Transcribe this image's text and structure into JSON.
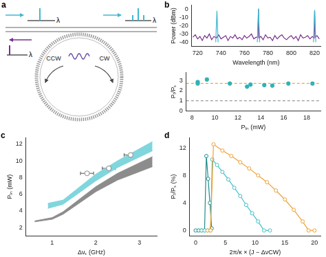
{
  "diagram": {
    "panel": "a",
    "wavelength_label": "λ",
    "ccw_label": "CCW",
    "cw_label": "CW"
  },
  "chart_data": [
    {
      "panel": "b",
      "type": "line",
      "xlabel": "Wavelength (nm)",
      "ylabel": "Power (dBm)",
      "xlim": [
        715,
        825
      ],
      "xticks": [
        720,
        740,
        760,
        780,
        800,
        820
      ],
      "ylim": [
        -45,
        5
      ],
      "yticks": [
        -40,
        -30,
        -20,
        -10,
        0
      ],
      "grid": false,
      "series": [
        {
          "color": "#7a2f8f",
          "marker": "none",
          "line_style": "solid",
          "x": [
            716,
            718,
            720,
            722,
            724,
            726,
            728,
            730,
            732,
            734,
            736,
            738,
            740,
            742,
            744,
            746,
            748,
            750,
            752,
            754,
            756,
            758,
            760,
            762,
            764,
            766,
            768,
            770,
            771.5,
            772,
            772.5,
            774,
            776,
            778,
            780,
            782,
            784,
            786,
            788,
            790,
            792,
            794,
            796,
            798,
            800,
            802,
            804,
            806,
            808,
            810,
            812,
            814,
            816,
            818,
            819.5,
            820,
            820.5,
            822,
            824
          ],
          "values": [
            -34,
            -31,
            -36,
            -33,
            -38,
            -32,
            -35,
            -30,
            -37,
            -33,
            -35,
            -31,
            -36,
            -34,
            -32,
            -38,
            -33,
            -35,
            -31,
            -36,
            -34,
            -37,
            -32,
            -35,
            -33,
            -30,
            -36,
            -34,
            -34,
            0,
            -35,
            -33,
            -37,
            -31,
            -35,
            -34,
            -38,
            -32,
            -36,
            -33,
            -31,
            -35,
            -37,
            -34,
            -32,
            -36,
            -33,
            -38,
            -31,
            -35,
            -34,
            -32,
            -36,
            -33,
            -35,
            -2,
            -34,
            -32,
            -36
          ]
        },
        {
          "color": "#3fb8d0",
          "marker": "none",
          "line_style": "solid",
          "x": [
            735.5,
            736.5,
            737.5,
            750,
            771,
            772,
            773,
            790,
            819,
            820,
            821
          ],
          "values": [
            -40,
            -2,
            -40,
            null,
            -40,
            1,
            -40,
            null,
            -40,
            -1,
            -40
          ]
        }
      ]
    },
    {
      "type": "scatter",
      "xlabel": "Pᵢₙ (mW)",
      "ylabel": "Pᵣ/Pₛ",
      "xlim": [
        7.5,
        19.2
      ],
      "xticks": [
        8,
        10,
        12,
        14,
        16,
        18
      ],
      "ylim": [
        0,
        3.8
      ],
      "yticks": [
        0,
        1,
        2,
        3
      ],
      "grid": false,
      "series": [
        {
          "color": "#2fb3b3",
          "marker": "circle",
          "x": [
            8.5,
            8.5,
            9.3,
            11.3,
            12.8,
            13.1,
            14.3,
            15,
            16.4,
            18.5
          ],
          "values": [
            2.85,
            2.7,
            3.1,
            2.7,
            2.4,
            2.6,
            2.55,
            2.5,
            2.7,
            2.7
          ]
        }
      ],
      "reference_lines": [
        {
          "value": 2.72,
          "color": "#f0a830",
          "line_style": "dashed"
        },
        {
          "value": 1,
          "color": "#999999",
          "line_style": "dashed"
        }
      ]
    },
    {
      "panel": "c",
      "type": "line",
      "xlabel": "Δνₛ (GHz)",
      "ylabel": "Pᵢₙ (mW)",
      "xlim": [
        0.4,
        3.4
      ],
      "xticks": [
        1,
        2,
        3
      ],
      "ylim": [
        1,
        12.8
      ],
      "yticks": [
        2,
        4,
        6,
        8,
        10,
        12
      ],
      "grid": false,
      "bands": [
        {
          "color": "#7fd6dc",
          "x": [
            0.9,
            1.25,
            2,
            2.5,
            3.3
          ],
          "lower": [
            4.3,
            4.8,
            7.6,
            9.2,
            11.2
          ],
          "upper": [
            4.9,
            5.3,
            8.4,
            10,
            12.3
          ]
        },
        {
          "color": "#8c8c8c",
          "x": [
            0.6,
            1,
            1.25,
            2,
            2.5,
            3.3
          ],
          "lower": [
            2.7,
            3.0,
            3.6,
            6.3,
            7.7,
            9.3
          ],
          "upper": [
            2.8,
            3.2,
            3.9,
            6.9,
            8.5,
            10.5
          ]
        }
      ],
      "points": {
        "x": [
          1.8,
          2.3,
          2.8
        ],
        "values": [
          8.5,
          9.1,
          10.7
        ],
        "x_err": [
          0.15,
          0.15,
          0.15
        ],
        "color": "#888888",
        "marker": "open_circle"
      }
    },
    {
      "panel": "d",
      "type": "line",
      "xlabel": "2π/κ × (J − ΔνCW)",
      "ylabel": "Pᵣ/Pₛ (%)",
      "xlim": [
        -1,
        21
      ],
      "xticks": [
        0,
        5,
        10,
        15,
        20
      ],
      "ylim": [
        -0.8,
        13.5
      ],
      "yticks": [
        0,
        4,
        8,
        12
      ],
      "grid": false,
      "series": [
        {
          "color": "#1f8a8a",
          "marker": "open_circle",
          "line_style": "solid",
          "x": [
            0,
            0.5,
            1,
            1.5,
            1.8,
            2.1,
            2.4,
            2.7
          ],
          "values": [
            0,
            0,
            0,
            0,
            10.8,
            7.5,
            4,
            0.3
          ]
        },
        {
          "color": "#40c0c8",
          "marker": "open_circle",
          "line_style": "solid",
          "x": [
            1,
            1.5,
            2,
            2.5,
            2.8,
            3.6,
            4.5,
            5.5,
            6.5,
            7.5,
            8.5,
            9.5,
            10.5,
            11.5,
            12.5
          ],
          "values": [
            0,
            0,
            0,
            0,
            10.3,
            9.5,
            8.5,
            7.4,
            6.2,
            5,
            3.7,
            2.5,
            1.3,
            0,
            0
          ]
        },
        {
          "color": "#f0a030",
          "marker": "open_circle",
          "line_style": "solid",
          "x": [
            2,
            2.5,
            3,
            4.5,
            6,
            7.5,
            9,
            10.5,
            12,
            13.5,
            15,
            16.5,
            18,
            19,
            20
          ],
          "values": [
            0,
            0,
            12.5,
            11.6,
            10.8,
            9.9,
            9,
            8,
            7,
            5.8,
            4.5,
            3,
            1.3,
            0,
            0
          ]
        }
      ]
    }
  ]
}
